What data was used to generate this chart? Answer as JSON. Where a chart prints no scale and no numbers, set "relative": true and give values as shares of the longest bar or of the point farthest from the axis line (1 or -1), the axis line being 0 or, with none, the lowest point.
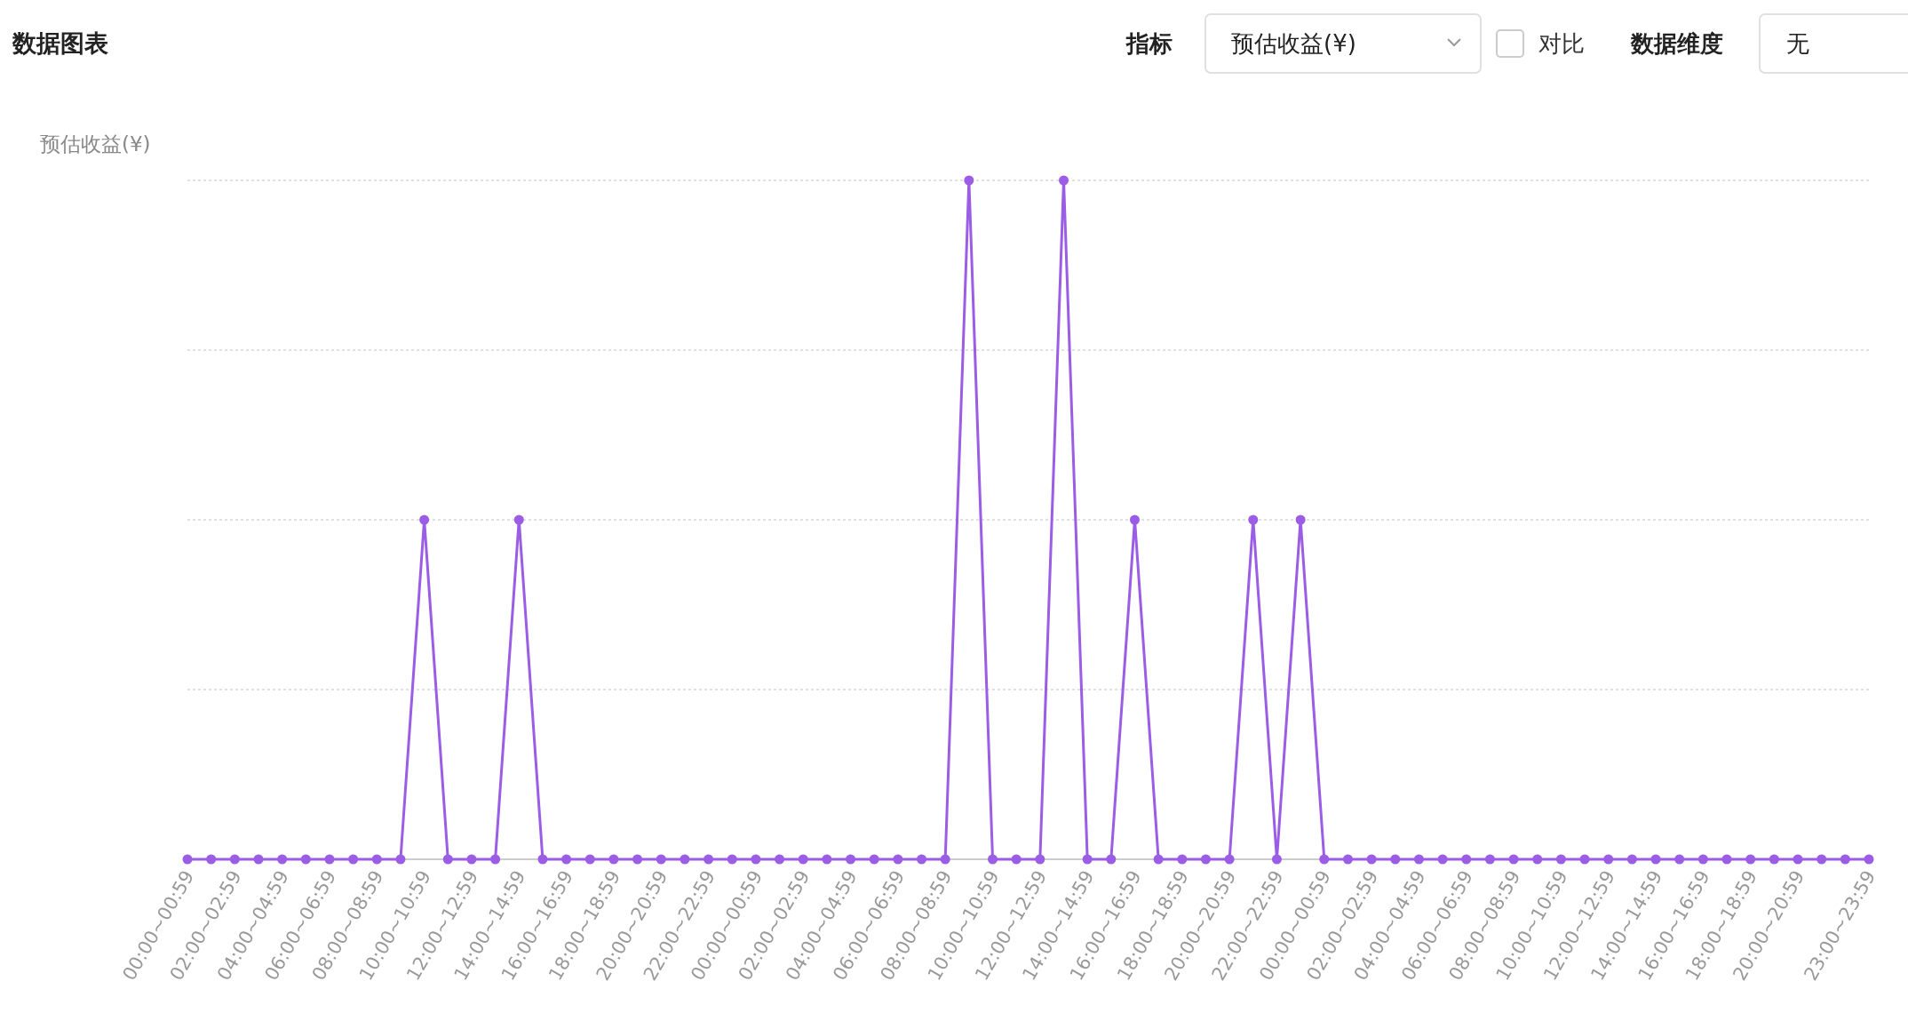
{
  "chart_data": {
    "type": "line",
    "title": "数据图表",
    "ylabel": "预估收益(¥)",
    "relative": true,
    "grid": "y",
    "marker": "circle",
    "line_style": "solid",
    "annotations": [
      "指标",
      "预估收益(¥)",
      "对比",
      "数据维度",
      "无"
    ],
    "categories": [
      "00:00~00:59",
      null,
      "02:00~02:59",
      null,
      "04:00~04:59",
      null,
      "06:00~06:59",
      null,
      "08:00~08:59",
      null,
      "10:00~10:59",
      null,
      "12:00~12:59",
      null,
      "14:00~14:59",
      null,
      "16:00~16:59",
      null,
      "18:00~18:59",
      null,
      "20:00~20:59",
      null,
      "22:00~22:59",
      null,
      "00:00~00:59",
      null,
      "02:00~02:59",
      null,
      "04:00~04:59",
      null,
      "06:00~06:59",
      null,
      "08:00~08:59",
      null,
      "10:00~10:59",
      null,
      "12:00~12:59",
      null,
      "14:00~14:59",
      null,
      "16:00~16:59",
      null,
      "18:00~18:59",
      null,
      "20:00~20:59",
      null,
      "22:00~22:59",
      null,
      "00:00~00:59",
      null,
      "02:00~02:59",
      null,
      "04:00~04:59",
      null,
      "06:00~06:59",
      null,
      "08:00~08:59",
      null,
      "10:00~10:59",
      null,
      "12:00~12:59",
      null,
      "14:00~14:59",
      null,
      "16:00~16:59",
      null,
      "18:00~18:59",
      null,
      "20:00~20:59",
      null,
      null,
      "23:00~23:59"
    ],
    "series": [
      {
        "color": "#9b5de5",
        "values": [
          0,
          0,
          0,
          0,
          0,
          0,
          0,
          0,
          0,
          0,
          0.5,
          0,
          0,
          0,
          0.5,
          0,
          0,
          0,
          0,
          0,
          0,
          0,
          0,
          0,
          0,
          0,
          0,
          0,
          0,
          0,
          0,
          0,
          0,
          1,
          0,
          0,
          0,
          1,
          0,
          0,
          0.5,
          0,
          0,
          0,
          0,
          0.5,
          0,
          0.5,
          0,
          0,
          0,
          0,
          0,
          0,
          0,
          0,
          0,
          0,
          0,
          0,
          0,
          0,
          0,
          0,
          0,
          0,
          0,
          0,
          0,
          0,
          0,
          0
        ]
      }
    ]
  }
}
